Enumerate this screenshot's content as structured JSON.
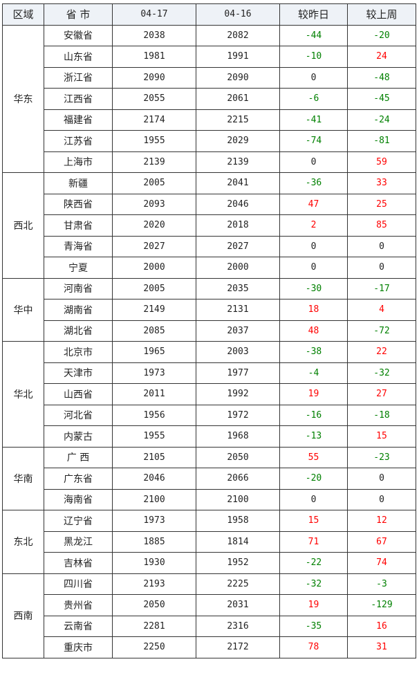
{
  "headers": [
    "区域",
    "省 市",
    "04-17",
    "04-16",
    "较昨日",
    "较上周"
  ],
  "colors": {
    "up": "#ff0000",
    "down": "#008000",
    "zero": "#222222",
    "header_bg": "#eef2f7"
  },
  "groups": [
    {
      "region": "华东",
      "rows": [
        [
          "安徽省",
          2038,
          2082,
          -44,
          -20
        ],
        [
          "山东省",
          1981,
          1991,
          -10,
          24
        ],
        [
          "浙江省",
          2090,
          2090,
          0,
          -48
        ],
        [
          "江西省",
          2055,
          2061,
          -6,
          -45
        ],
        [
          "福建省",
          2174,
          2215,
          -41,
          -24
        ],
        [
          "江苏省",
          1955,
          2029,
          -74,
          -81
        ],
        [
          "上海市",
          2139,
          2139,
          0,
          59
        ]
      ]
    },
    {
      "region": "西北",
      "rows": [
        [
          "新疆",
          2005,
          2041,
          -36,
          33
        ],
        [
          "陕西省",
          2093,
          2046,
          47,
          25
        ],
        [
          "甘肃省",
          2020,
          2018,
          2,
          85
        ],
        [
          "青海省",
          2027,
          2027,
          0,
          0
        ],
        [
          "宁夏",
          2000,
          2000,
          0,
          0
        ]
      ]
    },
    {
      "region": "华中",
      "rows": [
        [
          "河南省",
          2005,
          2035,
          -30,
          -17
        ],
        [
          "湖南省",
          2149,
          2131,
          18,
          4
        ],
        [
          "湖北省",
          2085,
          2037,
          48,
          -72
        ]
      ]
    },
    {
      "region": "华北",
      "rows": [
        [
          "北京市",
          1965,
          2003,
          -38,
          22
        ],
        [
          "天津市",
          1973,
          1977,
          -4,
          -32
        ],
        [
          "山西省",
          2011,
          1992,
          19,
          27
        ],
        [
          "河北省",
          1956,
          1972,
          -16,
          -18
        ],
        [
          "内蒙古",
          1955,
          1968,
          -13,
          15
        ]
      ]
    },
    {
      "region": "华南",
      "rows": [
        [
          "广 西",
          2105,
          2050,
          55,
          -23
        ],
        [
          "广东省",
          2046,
          2066,
          -20,
          0
        ],
        [
          "海南省",
          2100,
          2100,
          0,
          0
        ]
      ]
    },
    {
      "region": "东北",
      "rows": [
        [
          "辽宁省",
          1973,
          1958,
          15,
          12
        ],
        [
          "黑龙江",
          1885,
          1814,
          71,
          67
        ],
        [
          "吉林省",
          1930,
          1952,
          -22,
          74
        ]
      ]
    },
    {
      "region": "西南",
      "rows": [
        [
          "四川省",
          2193,
          2225,
          -32,
          -3
        ],
        [
          "贵州省",
          2050,
          2031,
          19,
          -129
        ],
        [
          "云南省",
          2281,
          2316,
          -35,
          16
        ],
        [
          "重庆市",
          2250,
          2172,
          78,
          31
        ]
      ]
    }
  ]
}
